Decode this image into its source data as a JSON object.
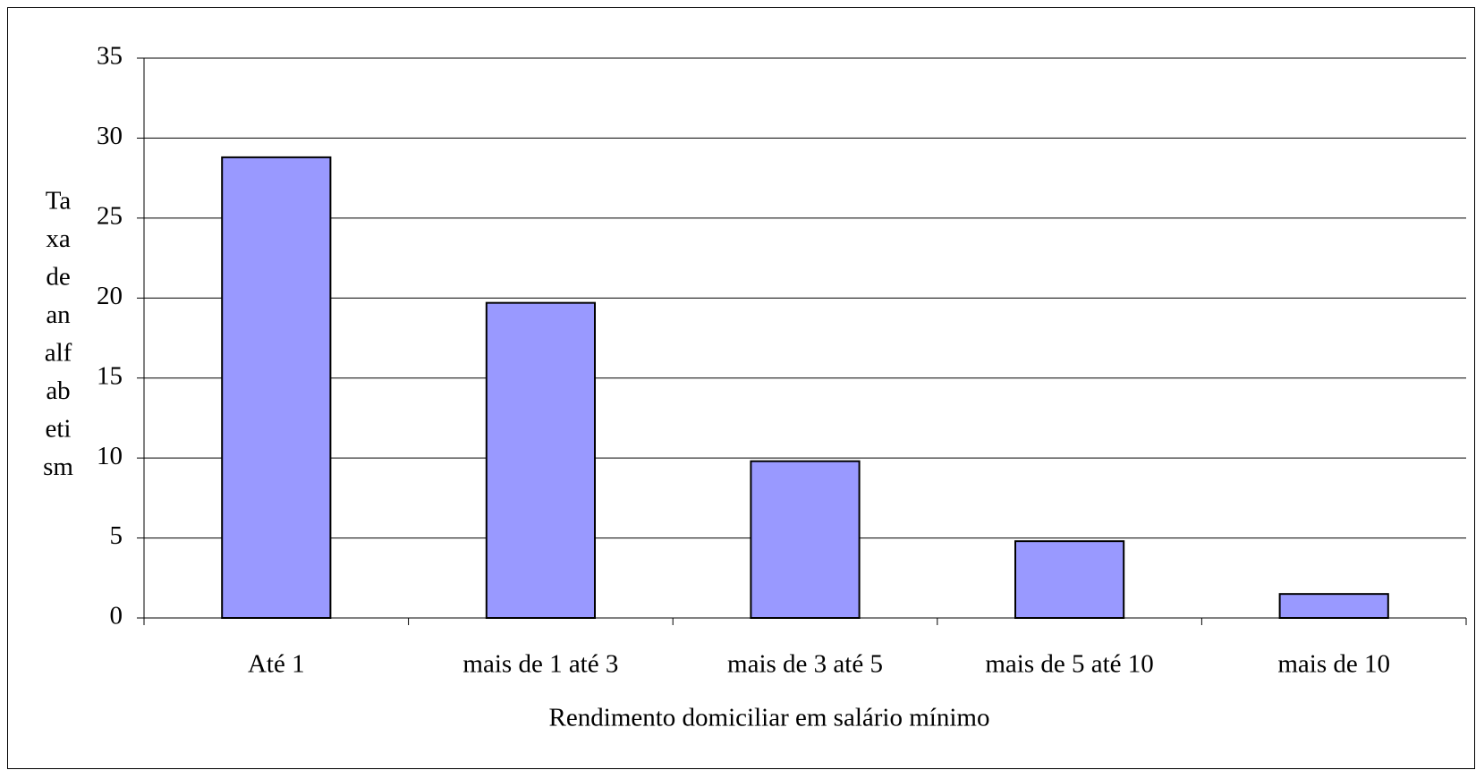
{
  "chart_data": {
    "type": "bar",
    "categories": [
      "Até 1",
      "mais de 1 até 3",
      "mais de 3 até 5",
      "mais de 5 até 10",
      "mais de 10"
    ],
    "values": [
      28.8,
      19.7,
      9.8,
      4.8,
      1.5
    ],
    "color": "#9999ff",
    "xlabel": "Rendimento domiciliar em salário mínimo",
    "ylabel_lines": [
      "Ta",
      "xa",
      "de",
      "an",
      "alf",
      "ab",
      "eti",
      "sm"
    ],
    "ylim": [
      0,
      35
    ],
    "yticks": [
      0,
      5,
      10,
      15,
      20,
      25,
      30,
      35
    ],
    "grid": true
  }
}
